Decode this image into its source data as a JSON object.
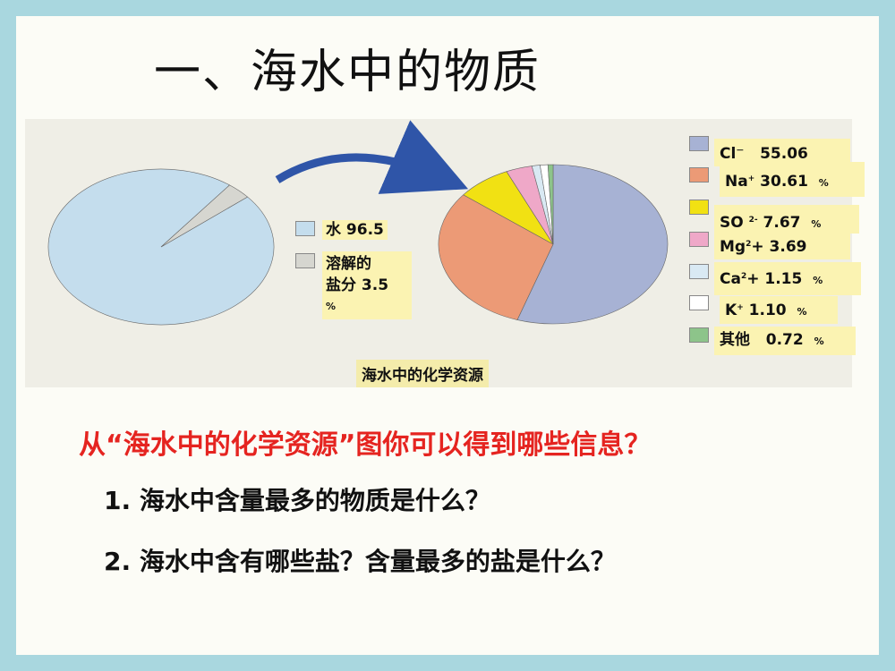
{
  "title": "一、海水中的物质",
  "caption": "海水中的化学资源",
  "colors": {
    "water": "#c4dded",
    "dissolved_salt": "#d6d6d0",
    "cl": "#a7b2d4",
    "na": "#ec9a76",
    "so4": "#f1e113",
    "mg": "#efa8c8",
    "ca": "#d9e9f3",
    "k": "#ffffff",
    "other": "#8dc48a"
  },
  "chart_data": [
    {
      "type": "pie",
      "slices": [
        {
          "label": "水",
          "value": 96.5
        },
        {
          "label": "溶解的盐分",
          "value": 3.5
        }
      ],
      "legend": [
        {
          "text": "水 96.5"
        },
        {
          "text_line1": "溶解的",
          "text_line2": "盐分 3.5",
          "unit": "%"
        }
      ]
    },
    {
      "type": "pie",
      "slices": [
        {
          "label": "Cl⁻",
          "value": 55.06
        },
        {
          "label": "Na⁺",
          "value": 30.61
        },
        {
          "label": "SO₄²⁻",
          "value": 7.67
        },
        {
          "label": "Mg²⁺",
          "value": 3.69
        },
        {
          "label": "Ca²⁺",
          "value": 1.15
        },
        {
          "label": "K⁺",
          "value": 1.1
        },
        {
          "label": "其他",
          "value": 0.72
        }
      ],
      "legend": [
        {
          "base": "Cl",
          "sup": "－",
          "value": "55.06",
          "unit": ""
        },
        {
          "base": "Na",
          "sup": "+",
          "value": "30.61",
          "unit": "%"
        },
        {
          "base": "SO",
          "sub": "",
          "sup": "2-",
          "value": "7.67",
          "unit": "%"
        },
        {
          "base": "Mg",
          "sup": "2",
          "mid": "+",
          "value": "3.69",
          "unit": ""
        },
        {
          "base": "Ca",
          "sup": "2",
          "mid": "+",
          "value": "1.15",
          "unit": "%"
        },
        {
          "base": "K",
          "sup": "+",
          "value": "1.10",
          "unit": "%"
        },
        {
          "base": "其他",
          "value": "0.72",
          "unit": "%"
        }
      ]
    }
  ],
  "question": "从“海水中的化学资源”图你可以得到哪些信息？",
  "items": [
    {
      "num": "1.",
      "text": "海水中含量最多的物质是什么？"
    },
    {
      "num": "2.",
      "text": "海水中含有哪些盐？含量最多的盐是什么？"
    }
  ]
}
